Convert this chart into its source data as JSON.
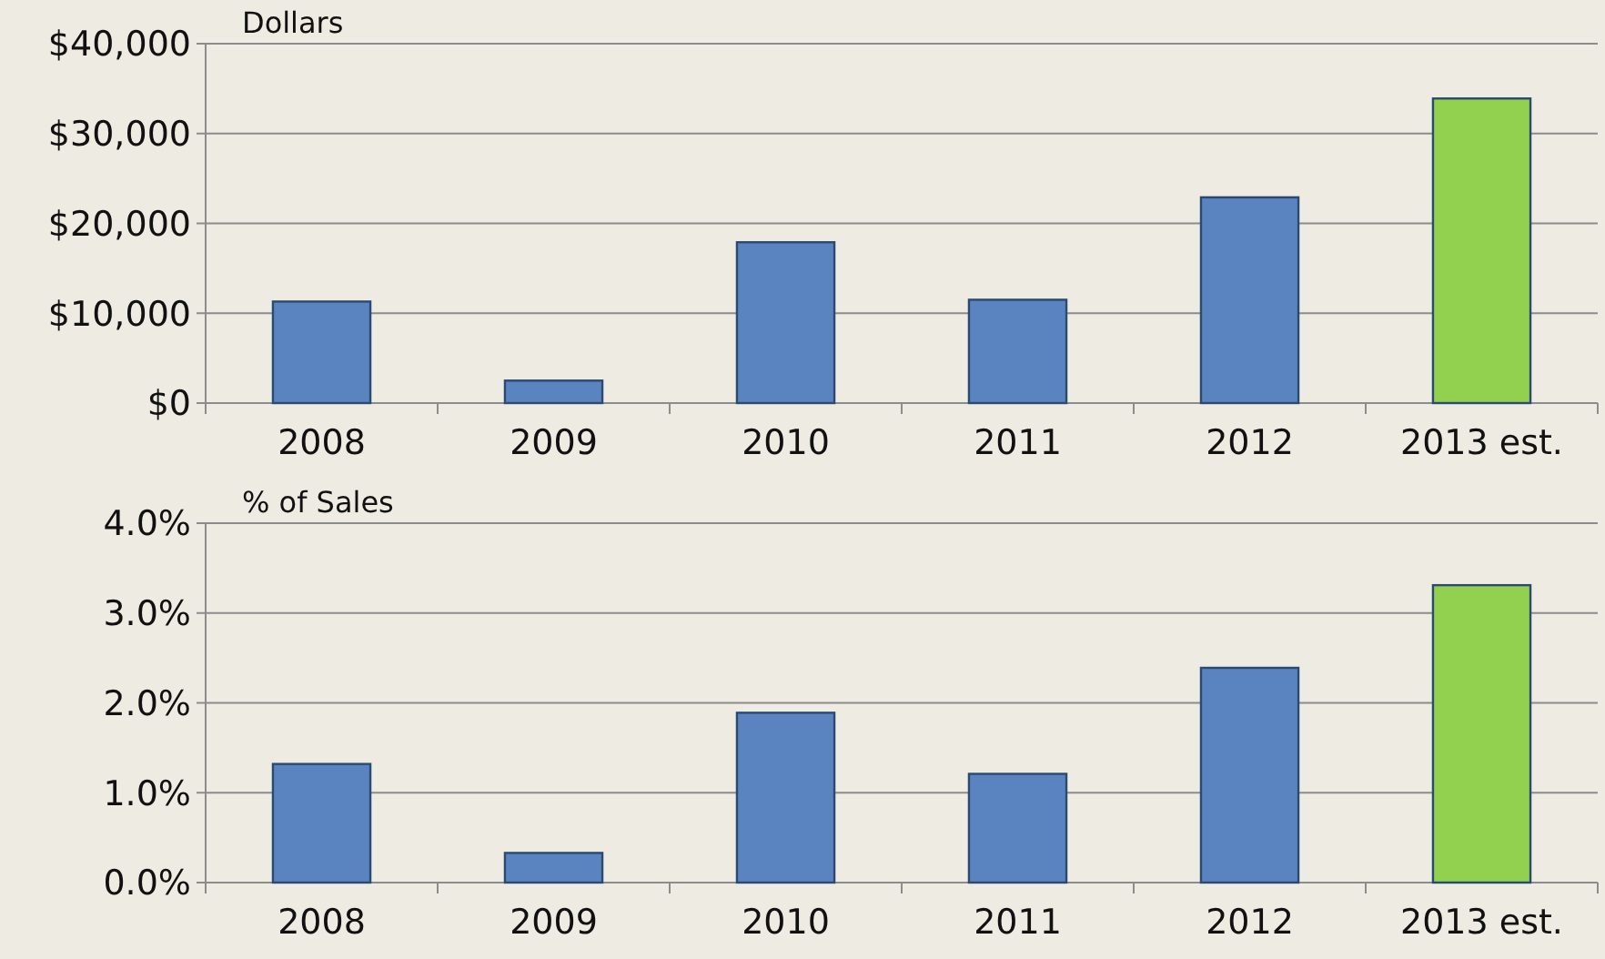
{
  "chart_data": [
    {
      "type": "bar",
      "ylabel": "Dollars",
      "categories": [
        "2008",
        "2009",
        "2010",
        "2011",
        "2012",
        "2013 est."
      ],
      "values": [
        11300,
        2500,
        17900,
        11500,
        22900,
        33900
      ],
      "colors": [
        "#5a84bf",
        "#5a84bf",
        "#5a84bf",
        "#5a84bf",
        "#5a84bf",
        "#92d050"
      ],
      "ylim": [
        0,
        40000
      ],
      "yticks": [
        {
          "value": 0,
          "label": "$0"
        },
        {
          "value": 10000,
          "label": "$10,000"
        },
        {
          "value": 20000,
          "label": "$20,000"
        },
        {
          "value": 30000,
          "label": "$30,000"
        },
        {
          "value": 40000,
          "label": "$40,000"
        }
      ],
      "grid": "y"
    },
    {
      "type": "bar",
      "ylabel": "% of Sales",
      "categories": [
        "2008",
        "2009",
        "2010",
        "2011",
        "2012",
        "2013 est."
      ],
      "values": [
        1.32,
        0.33,
        1.89,
        1.21,
        2.39,
        3.31
      ],
      "colors": [
        "#5a84bf",
        "#5a84bf",
        "#5a84bf",
        "#5a84bf",
        "#5a84bf",
        "#92d050"
      ],
      "ylim": [
        0,
        4
      ],
      "yticks": [
        {
          "value": 0,
          "label": "0.0%"
        },
        {
          "value": 1,
          "label": "1.0%"
        },
        {
          "value": 2,
          "label": "2.0%"
        },
        {
          "value": 3,
          "label": "3.0%"
        },
        {
          "value": 4,
          "label": "4.0%"
        }
      ],
      "grid": "y"
    }
  ]
}
